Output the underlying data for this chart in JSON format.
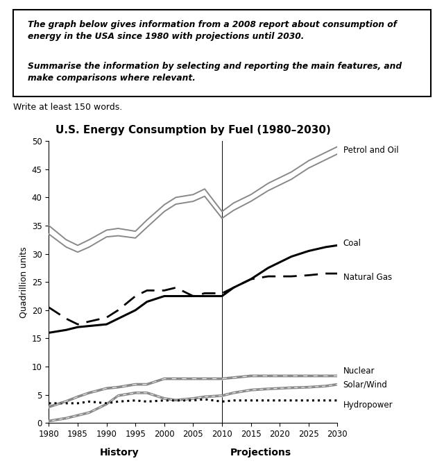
{
  "title": "U.S. Energy Consumption by Fuel (1980–2030)",
  "ylabel": "Quadrillion units",
  "xlabel_history": "History",
  "xlabel_projections": "Projections",
  "years": [
    1980,
    1983,
    1985,
    1987,
    1990,
    1992,
    1995,
    1997,
    2000,
    2002,
    2005,
    2007,
    2010,
    2012,
    2015,
    2018,
    2020,
    2022,
    2025,
    2028,
    2030
  ],
  "petrol_upper": [
    35.0,
    32.5,
    31.5,
    32.5,
    34.2,
    34.5,
    34.0,
    36.0,
    38.7,
    40.0,
    40.5,
    41.5,
    37.5,
    39.0,
    40.5,
    42.5,
    43.5,
    44.5,
    46.5,
    48.0,
    49.0
  ],
  "petrol_lower": [
    33.5,
    31.2,
    30.3,
    31.2,
    33.0,
    33.2,
    32.8,
    34.7,
    37.5,
    38.8,
    39.3,
    40.2,
    36.3,
    37.7,
    39.3,
    41.2,
    42.2,
    43.2,
    45.2,
    46.7,
    47.7
  ],
  "coal": [
    16.0,
    16.5,
    17.0,
    17.2,
    17.5,
    18.5,
    20.0,
    21.5,
    22.5,
    22.5,
    22.5,
    22.5,
    22.5,
    24.0,
    25.5,
    27.5,
    28.5,
    29.5,
    30.5,
    31.2,
    31.5
  ],
  "natural_gas": [
    20.5,
    18.5,
    17.5,
    18.0,
    18.7,
    20.0,
    22.5,
    23.5,
    23.5,
    24.0,
    22.5,
    23.0,
    23.0,
    24.0,
    25.5,
    26.0,
    26.0,
    26.0,
    26.2,
    26.5,
    26.5
  ],
  "nuclear_upper": [
    3.0,
    4.0,
    4.8,
    5.5,
    6.3,
    6.5,
    7.0,
    7.0,
    8.0,
    8.0,
    8.0,
    8.0,
    8.0,
    8.2,
    8.5,
    8.5,
    8.5,
    8.5,
    8.5,
    8.5,
    8.5
  ],
  "nuclear_lower": [
    2.7,
    3.7,
    4.5,
    5.2,
    6.0,
    6.2,
    6.7,
    6.7,
    7.7,
    7.7,
    7.7,
    7.7,
    7.7,
    7.9,
    8.2,
    8.2,
    8.2,
    8.2,
    8.2,
    8.2,
    8.2
  ],
  "solar_upper": [
    0.5,
    1.0,
    1.5,
    2.0,
    3.5,
    5.0,
    5.5,
    5.5,
    4.5,
    4.2,
    4.5,
    4.8,
    5.0,
    5.5,
    6.0,
    6.2,
    6.3,
    6.4,
    6.5,
    6.7,
    7.0
  ],
  "solar_lower": [
    0.2,
    0.7,
    1.2,
    1.7,
    3.2,
    4.7,
    5.2,
    5.2,
    4.2,
    3.9,
    4.2,
    4.5,
    4.7,
    5.2,
    5.7,
    5.9,
    6.0,
    6.1,
    6.2,
    6.4,
    6.7
  ],
  "hydropower": [
    3.5,
    3.5,
    3.5,
    3.8,
    3.5,
    3.8,
    4.0,
    3.8,
    4.0,
    4.0,
    4.0,
    4.2,
    3.8,
    4.0,
    4.0,
    4.0,
    4.0,
    4.0,
    4.0,
    4.0,
    4.0
  ],
  "xtick_years": [
    1980,
    1985,
    1990,
    1995,
    2000,
    2005,
    2010,
    2015,
    2020,
    2025,
    2030
  ],
  "projection_start": 2010,
  "color_petrol": "#888888",
  "color_coal": "#000000",
  "color_natural_gas": "#000000",
  "color_nuclear": "#888888",
  "color_solar": "#888888",
  "color_hydro": "#000000",
  "ylim": [
    0,
    50
  ],
  "yticks": [
    0,
    5,
    10,
    15,
    20,
    25,
    30,
    35,
    40,
    45,
    50
  ],
  "header_text1": "The graph below gives information from a 2008 report about consumption of\nenergy in the USA since 1980 with projections until 2030.",
  "header_text2": "Summarise the information by selecting and reporting the main features, and\nmake comparisons where relevant.",
  "subtext": "Write at least 150 words."
}
